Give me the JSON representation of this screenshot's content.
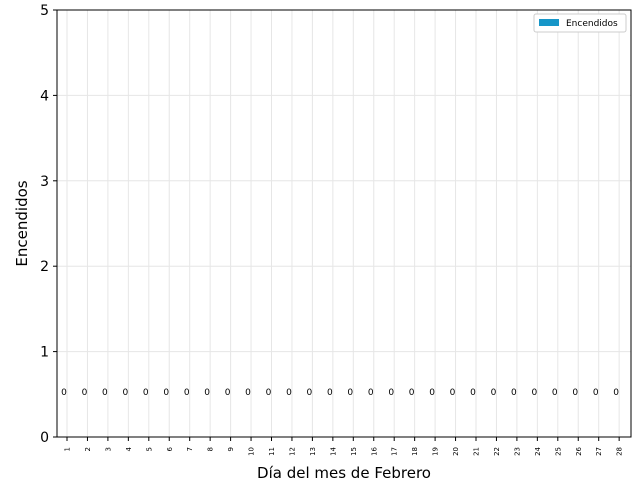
{
  "chart_data": {
    "type": "bar",
    "xlabel": "Día del mes de Febrero",
    "ylabel": "Encendidos",
    "ylim": [
      0,
      5
    ],
    "yticks": [
      "0",
      "1",
      "2",
      "3",
      "4",
      "5"
    ],
    "categories": [
      "1",
      "2",
      "3",
      "4",
      "5",
      "6",
      "7",
      "8",
      "9",
      "10",
      "11",
      "12",
      "13",
      "14",
      "15",
      "16",
      "17",
      "18",
      "19",
      "20",
      "21",
      "22",
      "23",
      "24",
      "25",
      "26",
      "27",
      "28"
    ],
    "series": [
      {
        "name": "Encendidos",
        "color": "#1696c8",
        "values": [
          0,
          0,
          0,
          0,
          0,
          0,
          0,
          0,
          0,
          0,
          0,
          0,
          0,
          0,
          0,
          0,
          0,
          0,
          0,
          0,
          0,
          0,
          0,
          0,
          0,
          0,
          0,
          0
        ]
      }
    ],
    "data_labels": [
      "0",
      "0",
      "0",
      "0",
      "0",
      "0",
      "0",
      "0",
      "0",
      "0",
      "0",
      "0",
      "0",
      "0",
      "0",
      "0",
      "0",
      "0",
      "0",
      "0",
      "0",
      "0",
      "0",
      "0",
      "0",
      "0",
      "0",
      "0"
    ],
    "grid": true,
    "legend_position": "top-right"
  }
}
